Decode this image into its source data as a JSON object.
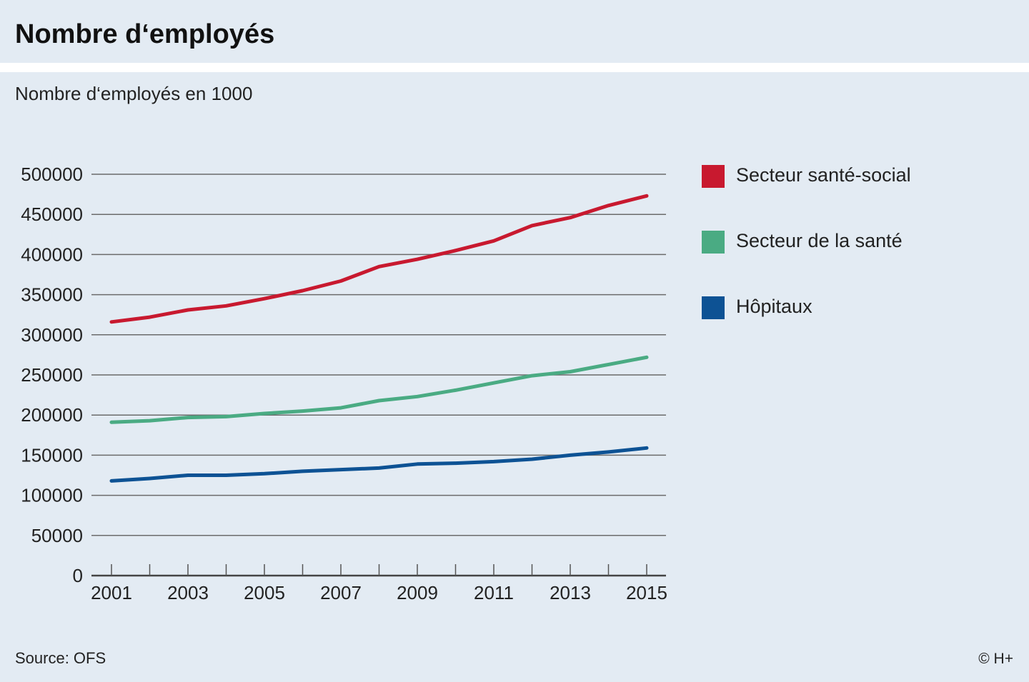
{
  "header": {
    "title": "Nombre d‘employés"
  },
  "subtitle": "Nombre d‘employés en 1000",
  "footer": {
    "source": "Source: OFS",
    "copyright": "© H+"
  },
  "colors": {
    "background": "#e3ebf3",
    "grid": "#555555",
    "red": "#c8192f",
    "green": "#4aab83",
    "blue": "#0d5294"
  },
  "chart_data": {
    "type": "line",
    "title": "Nombre d‘employés",
    "ylabel": "Nombre d‘employés en 1000",
    "xlabel": "",
    "x": [
      2001,
      2002,
      2003,
      2004,
      2005,
      2006,
      2007,
      2008,
      2009,
      2010,
      2011,
      2012,
      2013,
      2014,
      2015
    ],
    "x_tick_labels": [
      "2001",
      "2003",
      "2005",
      "2007",
      "2009",
      "2011",
      "2013",
      "2015"
    ],
    "y_tick_labels": [
      "0",
      "50000",
      "100000",
      "150000",
      "200000",
      "250000",
      "300000",
      "350000",
      "400000",
      "450000",
      "500000"
    ],
    "ylim": [
      0,
      500000
    ],
    "grid": true,
    "legend_position": "right",
    "series": [
      {
        "name": "Secteur santé-social",
        "color": "#c8192f",
        "values": [
          316000,
          322000,
          331000,
          336000,
          345000,
          355000,
          367000,
          385000,
          394000,
          405000,
          417000,
          436000,
          446000,
          461000,
          473000
        ]
      },
      {
        "name": "Secteur de la santé",
        "color": "#4aab83",
        "values": [
          191000,
          193000,
          197000,
          198000,
          202000,
          205000,
          209000,
          218000,
          223000,
          231000,
          240000,
          249000,
          254000,
          263000,
          272000
        ]
      },
      {
        "name": "Hôpitaux",
        "color": "#0d5294",
        "values": [
          118000,
          121000,
          125000,
          125000,
          127000,
          130000,
          132000,
          134000,
          139000,
          140000,
          142000,
          145000,
          150000,
          154000,
          159000
        ]
      }
    ]
  }
}
